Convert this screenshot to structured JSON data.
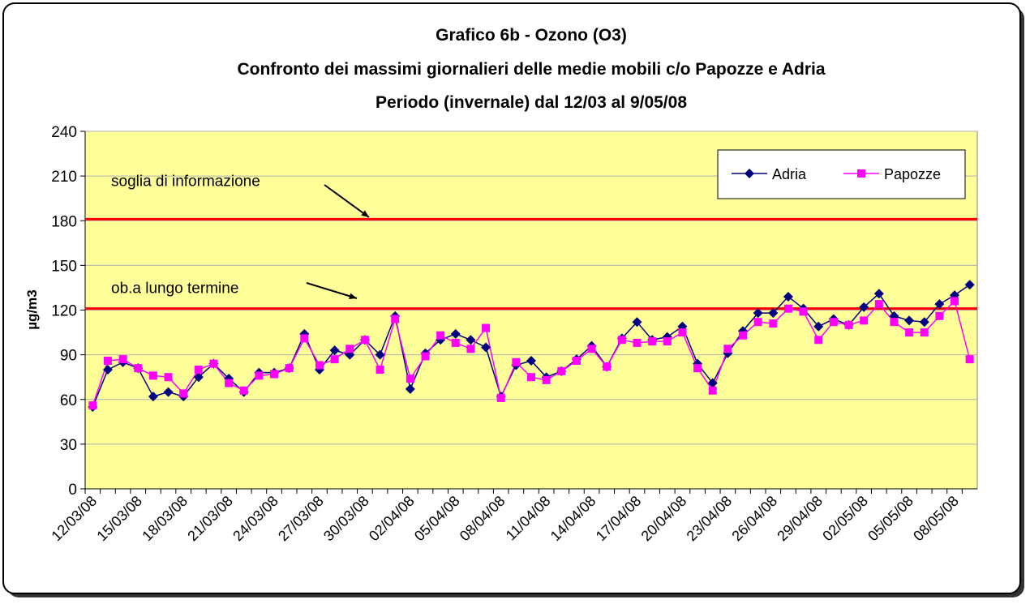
{
  "chart_data": {
    "type": "line",
    "title": [
      "Grafico 6b - Ozono (O3)",
      "Confronto dei massimi giornalieri delle medie mobili c/o Papozze e Adria",
      "Periodo (invernale) dal 12/03 al 9/05/08"
    ],
    "y_label": "µg/m3",
    "categories": [
      "12/03/08",
      null,
      null,
      "15/03/08",
      null,
      null,
      "18/03/08",
      null,
      null,
      "21/03/08",
      null,
      null,
      "24/03/08",
      null,
      null,
      "27/03/08",
      null,
      null,
      "30/03/08",
      null,
      null,
      "02/04/08",
      null,
      null,
      "05/04/08",
      null,
      null,
      "08/04/08",
      null,
      null,
      "11/04/08",
      null,
      null,
      "14/04/08",
      null,
      null,
      "17/04/08",
      null,
      null,
      "20/04/08",
      null,
      null,
      "23/04/08",
      null,
      null,
      "26/04/08",
      null,
      null,
      "29/04/08",
      null,
      null,
      "02/05/08",
      null,
      null,
      "05/05/08",
      null,
      null,
      "08/05/08",
      null
    ],
    "series": [
      {
        "name": "Adria",
        "color": "#000080",
        "marker": "diamond",
        "values": [
          55,
          80,
          85,
          81,
          62,
          65,
          62,
          75,
          84,
          74,
          65,
          78,
          78,
          81,
          104,
          80,
          93,
          90,
          100,
          90,
          116,
          67,
          91,
          100,
          104,
          100,
          95,
          62,
          83,
          86,
          75,
          79,
          87,
          96,
          82,
          101,
          112,
          100,
          102,
          109,
          84,
          71,
          91,
          106,
          118,
          118,
          129,
          121,
          109,
          114,
          110,
          122,
          131,
          116,
          113,
          112,
          124,
          130,
          137
        ]
      },
      {
        "name": "Papozze",
        "color": "#FF00FF",
        "marker": "square",
        "values": [
          56,
          86,
          87,
          81,
          76,
          75,
          64,
          80,
          84,
          71,
          66,
          76,
          77,
          81,
          101,
          83,
          87,
          94,
          100,
          80,
          114,
          74,
          89,
          103,
          98,
          94,
          108,
          61,
          85,
          75,
          73,
          79,
          86,
          94,
          82,
          100,
          98,
          99,
          99,
          105,
          81,
          66,
          94,
          103,
          112,
          111,
          121,
          119,
          100,
          112,
          110,
          113,
          124,
          112,
          105,
          105,
          116,
          126,
          87
        ]
      }
    ],
    "reference_lines": [
      {
        "value": 181,
        "label": "soglia di informazione",
        "color": "#FF0000"
      },
      {
        "value": 121,
        "label": "ob.a lungo termine",
        "color": "#FF0000"
      }
    ],
    "ylim": [
      0,
      240
    ],
    "yticks": [
      0,
      30,
      60,
      90,
      120,
      150,
      180,
      210,
      240
    ],
    "grid": true,
    "legend": "upper right"
  }
}
